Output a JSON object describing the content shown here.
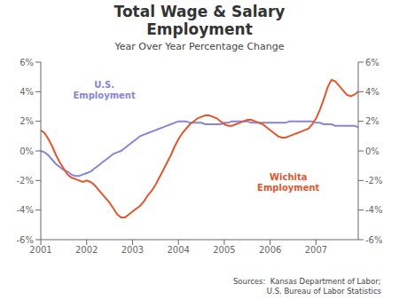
{
  "chart_data": {
    "type": "line",
    "title": "Total Wage & Salary\nEmployment",
    "subtitle": "Year Over Year Percentage Change",
    "annotations": [
      "Sources:  Kansas Department of Labor;\n              U.S. Bureau of Labor Statistics"
    ],
    "x": [
      2001,
      2001.0834,
      2001.1667,
      2001.2501,
      2001.3335,
      2001.4169,
      2001.5002,
      2001.5836,
      2001.667,
      2001.7504,
      2001.8337,
      2001.9171,
      2002.0005,
      2002.0839,
      2002.1672,
      2002.2506,
      2002.334,
      2002.4173,
      2002.5007,
      2002.5841,
      2002.6675,
      2002.7508,
      2002.8342,
      2002.9176,
      2003.001,
      2003.0843,
      2003.1677,
      2003.2511,
      2003.3345,
      2003.4178,
      2003.5012,
      2003.5846,
      2003.668,
      2003.7513,
      2003.8347,
      2003.9181,
      2004.0014,
      2004.0848,
      2004.1682,
      2004.2516,
      2004.3349,
      2004.4183,
      2004.5017,
      2004.5851,
      2004.6684,
      2004.7518,
      2004.8352,
      2004.9186,
      2005.0019,
      2005.0853,
      2005.1687,
      2005.252,
      2005.3354,
      2005.4188,
      2005.5022,
      2005.5855,
      2005.6689,
      2005.7523,
      2005.8357,
      2005.919,
      2006.0024,
      2006.0858,
      2006.1692,
      2006.2525,
      2006.3359,
      2006.4193,
      2006.5027,
      2006.586,
      2006.6694,
      2006.7528,
      2006.8361,
      2006.9195,
      2007.0029,
      2007.0863,
      2007.1696,
      2007.253,
      2007.3364,
      2007.4198,
      2007.5031,
      2007.5865,
      2007.6699,
      2007.7533,
      2007.8366,
      2007.92
    ],
    "series": [
      {
        "name": "U.S.\nEmployment",
        "values": [
          0.0,
          -0.1,
          -0.3,
          -0.6,
          -0.9,
          -1.1,
          -1.3,
          -1.4,
          -1.6,
          -1.7,
          -1.7,
          -1.6,
          -1.5,
          -1.4,
          -1.2,
          -1.0,
          -0.8,
          -0.6,
          -0.4,
          -0.2,
          -0.1,
          0.0,
          0.2,
          0.4,
          0.6,
          0.8,
          1.0,
          1.1,
          1.2,
          1.3,
          1.4,
          1.5,
          1.6,
          1.7,
          1.8,
          1.9,
          2.0,
          2.0,
          2.0,
          1.9,
          1.9,
          1.9,
          1.9,
          1.8,
          1.8,
          1.8,
          1.8,
          1.8,
          1.9,
          1.9,
          2.0,
          2.0,
          2.0,
          2.0,
          2.0,
          1.9,
          1.9,
          1.9,
          1.9,
          1.9,
          1.9,
          1.9,
          1.9,
          1.9,
          1.9,
          2.0,
          2.0,
          2.0,
          2.0,
          2.0,
          2.0,
          2.0,
          1.9,
          1.9,
          1.8,
          1.8,
          1.8,
          1.7,
          1.7,
          1.7,
          1.7,
          1.7,
          1.7,
          1.6
        ]
      },
      {
        "name": "Wichita\nEmployment",
        "values": [
          1.4,
          1.2,
          0.8,
          0.3,
          -0.3,
          -0.8,
          -1.2,
          -1.6,
          -1.8,
          -1.9,
          -2.0,
          -2.1,
          -2.0,
          -2.1,
          -2.3,
          -2.6,
          -2.9,
          -3.2,
          -3.5,
          -3.9,
          -4.3,
          -4.5,
          -4.5,
          -4.3,
          -4.1,
          -3.9,
          -3.7,
          -3.4,
          -3.0,
          -2.7,
          -2.3,
          -1.8,
          -1.3,
          -0.8,
          -0.3,
          0.3,
          0.8,
          1.2,
          1.5,
          1.8,
          2.0,
          2.2,
          2.3,
          2.4,
          2.4,
          2.3,
          2.2,
          2.0,
          1.8,
          1.7,
          1.7,
          1.8,
          1.9,
          2.0,
          2.1,
          2.1,
          2.0,
          1.9,
          1.8,
          1.6,
          1.4,
          1.2,
          1.0,
          0.9,
          0.9,
          1.0,
          1.1,
          1.2,
          1.3,
          1.4,
          1.5,
          1.8,
          2.2,
          2.8,
          3.5,
          4.3,
          4.8,
          4.7,
          4.4,
          4.1,
          3.8,
          3.7,
          3.8,
          4.0
        ]
      }
    ],
    "xlim": [
      2001,
      2007.92
    ],
    "xticks": [
      2001,
      2002,
      2003,
      2004,
      2005,
      2006,
      2007
    ],
    "ylim": [
      -6,
      6
    ],
    "yticks": [
      {
        "value": -6,
        "label": "-6%"
      },
      {
        "value": -4,
        "label": "-4%"
      },
      {
        "value": -2,
        "label": "-2%"
      },
      {
        "value": 0,
        "label": "0%"
      },
      {
        "value": 2,
        "label": "2%"
      },
      {
        "value": 4,
        "label": "4%"
      },
      {
        "value": 6,
        "label": "6%"
      }
    ],
    "y2lim": [
      -6,
      6
    ],
    "y2ticks": [
      {
        "value": -6,
        "label": "-6%"
      },
      {
        "value": -4,
        "label": "-4%"
      },
      {
        "value": -2,
        "label": "-2%"
      },
      {
        "value": 0,
        "label": "0%"
      },
      {
        "value": 2,
        "label": "2%"
      },
      {
        "value": 4,
        "label": "4%"
      },
      {
        "value": 6,
        "label": "6%"
      }
    ]
  }
}
